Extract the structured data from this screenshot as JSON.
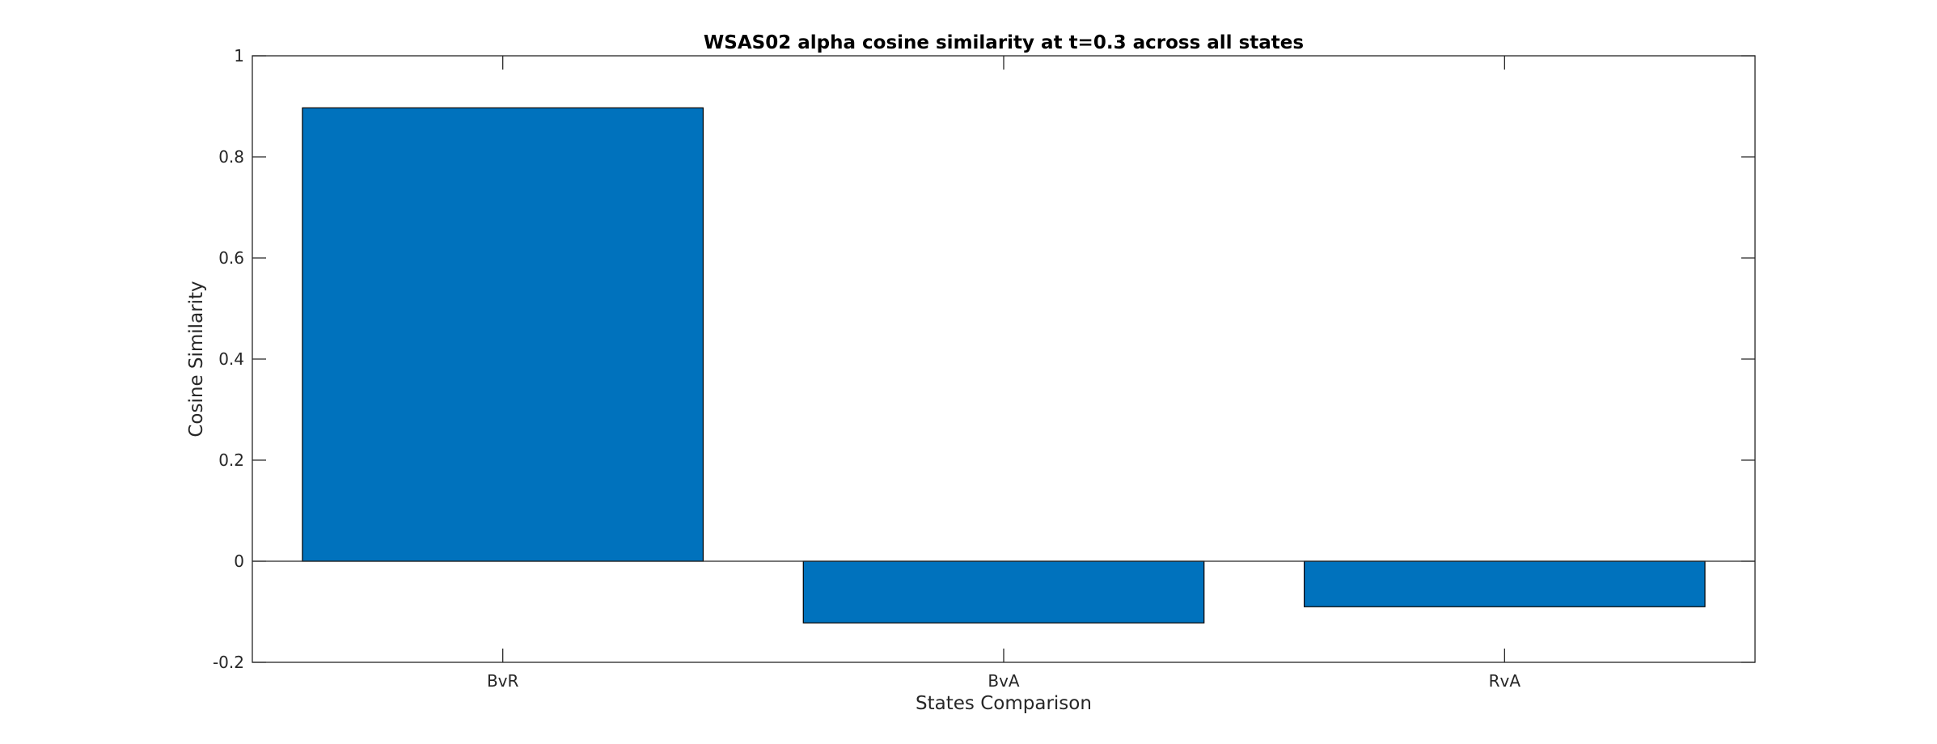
{
  "chart_data": {
    "type": "bar",
    "title": "WSAS02 alpha cosine similarity at t=0.3 across all states",
    "xlabel": "States Comparison",
    "ylabel": "Cosine Similarity",
    "categories": [
      "BvR",
      "BvA",
      "RvA"
    ],
    "values": [
      0.897,
      -0.122,
      -0.09
    ],
    "ylim": [
      -0.2,
      1
    ],
    "yticks": [
      -0.2,
      0,
      0.2,
      0.4,
      0.6,
      0.8,
      1
    ],
    "ytick_labels": [
      "-0.2",
      "0",
      "0.2",
      "0.4",
      "0.6",
      "0.8",
      "1"
    ],
    "grid": false,
    "legend": "none",
    "bar_color": "#0072BD",
    "bar_edge_color": "#000000",
    "axis_color": "#262626"
  }
}
